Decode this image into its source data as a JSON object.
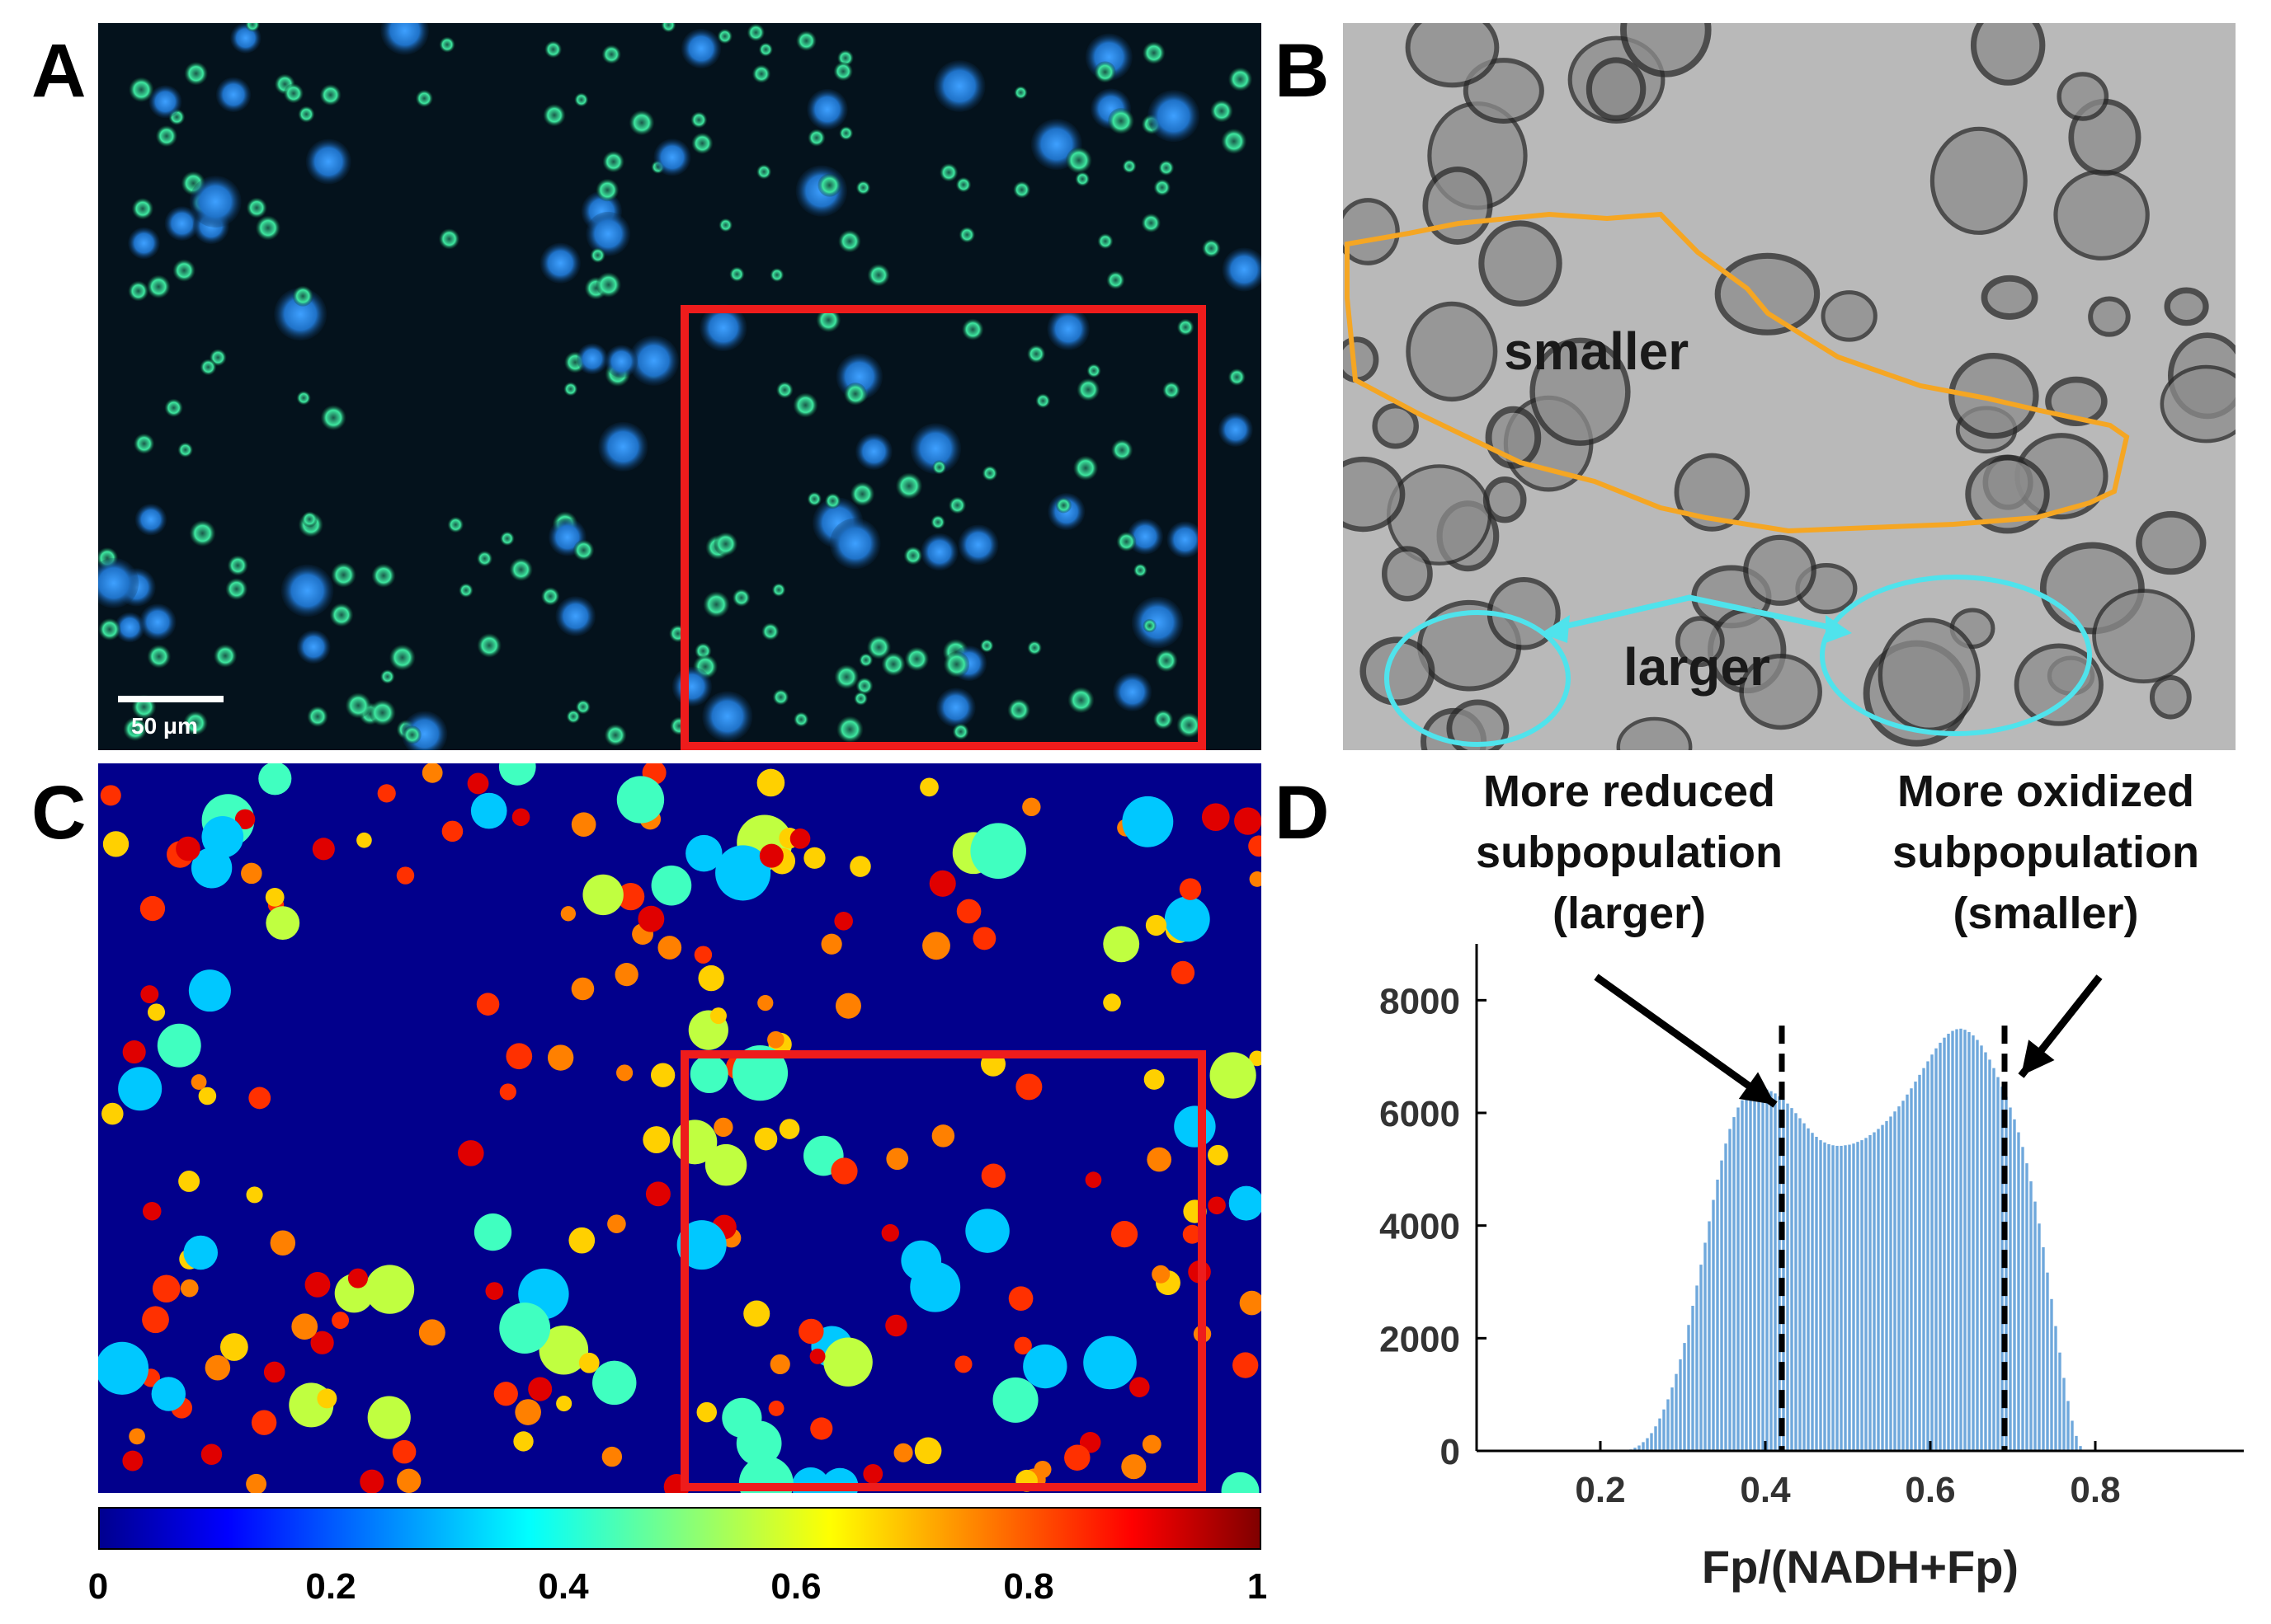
{
  "panels": {
    "a": {
      "letter": "A",
      "scale_bar_label": "50 μm"
    },
    "b": {
      "letter": "B",
      "label_smaller": "smaller",
      "label_larger": "larger"
    },
    "c": {
      "letter": "C"
    },
    "d": {
      "letter": "D"
    }
  },
  "colorbar": {
    "ticks": [
      "0",
      "0.2",
      "0.4",
      "0.6",
      "0.8",
      "1"
    ],
    "colormap": "jet",
    "range": [
      0,
      1
    ]
  },
  "colors": {
    "highlight_box": "#ee1c1c",
    "smaller_outline": "#f5a623",
    "larger_outline": "#4fe3ec",
    "histogram_bar": "#6fa8dc"
  },
  "chart_data": {
    "type": "bar",
    "title": "",
    "xlabel": "Fp/(NADH+Fp)",
    "ylabel": "",
    "xlim": [
      0.05,
      0.98
    ],
    "ylim": [
      0,
      9000
    ],
    "xticks": [
      "0.2",
      "0.4",
      "0.6",
      "0.8"
    ],
    "yticks": [
      "0",
      "2000",
      "4000",
      "6000",
      "8000"
    ],
    "bin_width": 0.005,
    "x_start": 0.15,
    "values": [
      0,
      0,
      0,
      0,
      0,
      0,
      0,
      0,
      0,
      0,
      0,
      0,
      0,
      0,
      0,
      0,
      10,
      30,
      60,
      100,
      160,
      230,
      320,
      440,
      580,
      740,
      920,
      1130,
      1370,
      1630,
      1920,
      2240,
      2580,
      2940,
      3310,
      3700,
      4080,
      4460,
      4820,
      5160,
      5460,
      5720,
      5930,
      6100,
      6230,
      6320,
      6380,
      6420,
      6440,
      6440,
      6420,
      6390,
      6350,
      6300,
      6240,
      6170,
      6090,
      6000,
      5910,
      5820,
      5730,
      5650,
      5580,
      5520,
      5480,
      5450,
      5430,
      5420,
      5420,
      5430,
      5440,
      5460,
      5490,
      5520,
      5560,
      5610,
      5660,
      5720,
      5790,
      5860,
      5940,
      6030,
      6120,
      6220,
      6330,
      6440,
      6560,
      6680,
      6800,
      6920,
      7040,
      7150,
      7250,
      7340,
      7410,
      7460,
      7490,
      7500,
      7480,
      7440,
      7380,
      7300,
      7200,
      7080,
      6950,
      6800,
      6640,
      6470,
      6290,
      6100,
      5890,
      5660,
      5400,
      5110,
      4790,
      4430,
      4040,
      3620,
      3170,
      2700,
      2220,
      1750,
      1300,
      890,
      540,
      270,
      90,
      20,
      0,
      0,
      0,
      0,
      0,
      0,
      0,
      0,
      0
    ],
    "reference_lines": [
      {
        "x": 0.42,
        "style": "dashed"
      },
      {
        "x": 0.69,
        "style": "dashed"
      }
    ],
    "annotations": [
      {
        "lines": [
          "More reduced",
          "subpopulation",
          "(larger)"
        ],
        "points_to_x": 0.42
      },
      {
        "lines": [
          "More oxidized",
          "subpopulation",
          "(smaller)"
        ],
        "points_to_x": 0.69
      }
    ]
  }
}
